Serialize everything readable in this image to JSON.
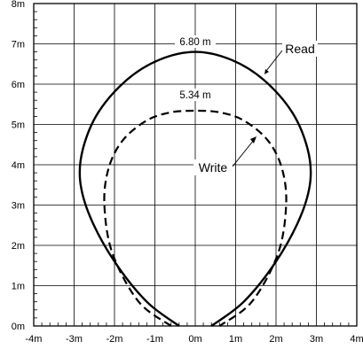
{
  "chart_data": {
    "type": "line",
    "title": "",
    "xlabel": "",
    "ylabel": "",
    "xlim": [
      -4,
      4
    ],
    "ylim": [
      0,
      8
    ],
    "grid": true,
    "x_ticks": [
      {
        "value": -4,
        "label": "-4m"
      },
      {
        "value": -3,
        "label": "-3m"
      },
      {
        "value": -2,
        "label": "-2m"
      },
      {
        "value": -1,
        "label": "-1m"
      },
      {
        "value": 0,
        "label": "0m"
      },
      {
        "value": 1,
        "label": "1m"
      },
      {
        "value": 2,
        "label": "2m"
      },
      {
        "value": 3,
        "label": "3m"
      },
      {
        "value": 4,
        "label": "4m"
      }
    ],
    "y_ticks": [
      {
        "value": 0,
        "label": "0m"
      },
      {
        "value": 1,
        "label": "1m"
      },
      {
        "value": 2,
        "label": "2m"
      },
      {
        "value": 3,
        "label": "3m"
      },
      {
        "value": 4,
        "label": "4m"
      },
      {
        "value": 5,
        "label": "5m"
      },
      {
        "value": 6,
        "label": "6m"
      },
      {
        "value": 7,
        "label": "7m"
      },
      {
        "value": 8,
        "label": "8m"
      }
    ],
    "series": [
      {
        "name": "Read",
        "style": "solid",
        "color": "#000000",
        "x": [
          -0.4,
          -1.2,
          -2.0,
          -2.6,
          -2.85,
          -2.78,
          -2.4,
          -1.7,
          -0.9,
          0.0,
          0.9,
          1.7,
          2.4,
          2.78,
          2.85,
          2.6,
          2.0,
          1.2,
          0.4
        ],
        "y": [
          0.0,
          0.6,
          1.6,
          2.7,
          3.6,
          4.4,
          5.3,
          6.1,
          6.6,
          6.8,
          6.6,
          6.1,
          5.3,
          4.4,
          3.6,
          2.7,
          1.6,
          0.6,
          0.0
        ]
      },
      {
        "name": "Write",
        "style": "dashed",
        "color": "#000000",
        "x": [
          -0.6,
          -1.4,
          -2.05,
          -2.25,
          -2.15,
          -1.8,
          -1.2,
          -0.6,
          0.0,
          0.6,
          1.2,
          1.8,
          2.15,
          2.25,
          2.05,
          1.4,
          0.6
        ],
        "y": [
          0.0,
          0.6,
          1.8,
          3.0,
          3.9,
          4.6,
          5.1,
          5.3,
          5.34,
          5.3,
          5.1,
          4.6,
          3.9,
          3.0,
          1.8,
          0.6,
          0.0
        ]
      }
    ],
    "annotations": [
      {
        "text": "6.80 m",
        "x": 0.0,
        "y": 6.8
      },
      {
        "text": "5.34 m",
        "x": 0.0,
        "y": 5.34
      },
      {
        "text": "Read"
      },
      {
        "text": "Write"
      }
    ]
  }
}
